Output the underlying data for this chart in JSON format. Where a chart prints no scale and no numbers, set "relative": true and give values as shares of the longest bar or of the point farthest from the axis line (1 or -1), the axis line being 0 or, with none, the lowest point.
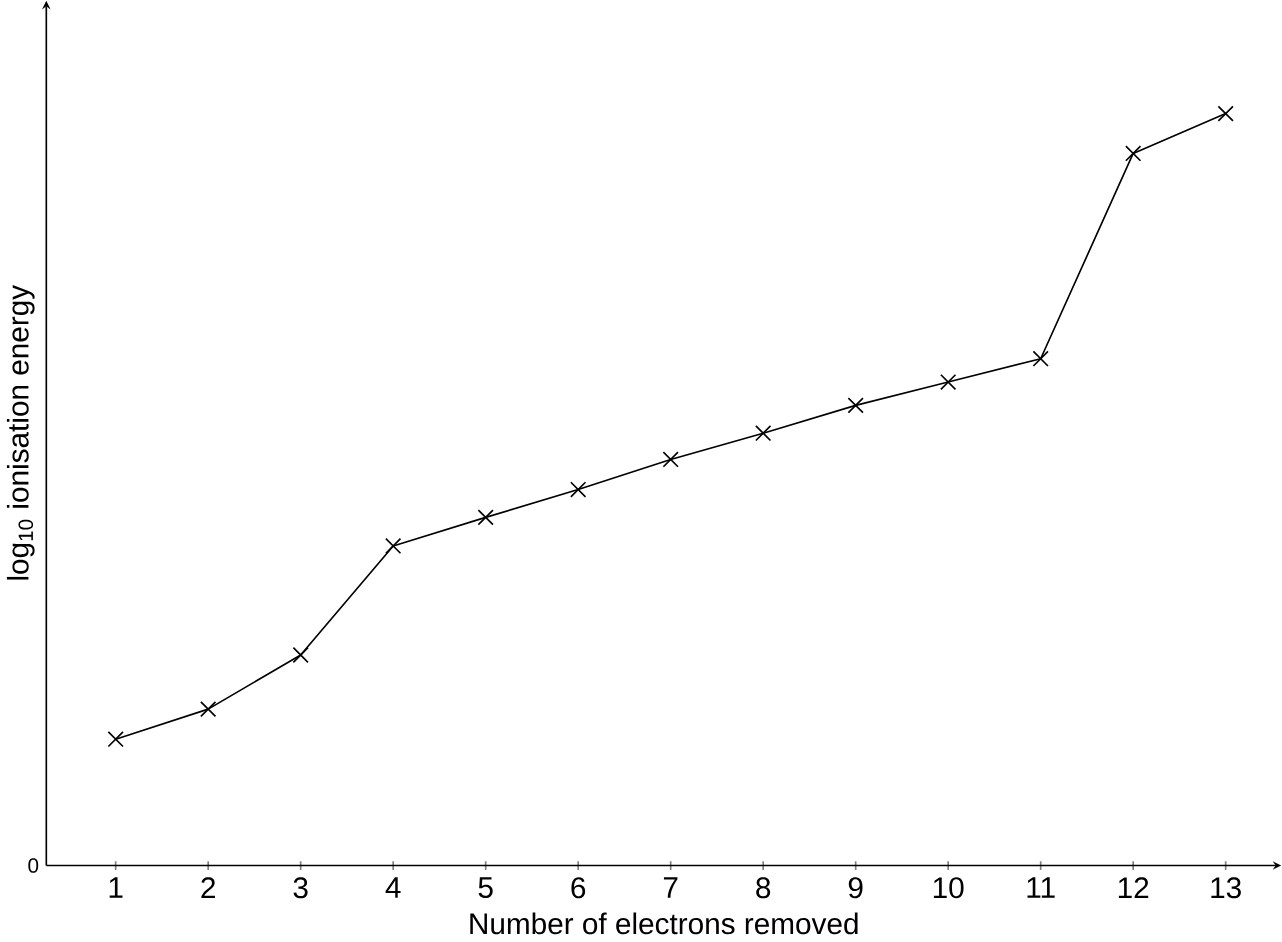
{
  "chart_data": {
    "type": "line",
    "xlabel": "Number of electrons removed",
    "ylabel": "log$_{10}$ ionisation energy",
    "categories": [
      "1",
      "2",
      "3",
      "4",
      "5",
      "6",
      "7",
      "8",
      "9",
      "10",
      "11",
      "12",
      "13"
    ],
    "values": [
      0.168,
      0.208,
      0.28,
      0.425,
      0.463,
      0.5,
      0.54,
      0.575,
      0.612,
      0.643,
      0.674,
      0.947,
      1
    ],
    "color": "#000000",
    "relative": true,
    "marker": "cross",
    "line_style": "solid",
    "annotations": [
      "0"
    ]
  }
}
